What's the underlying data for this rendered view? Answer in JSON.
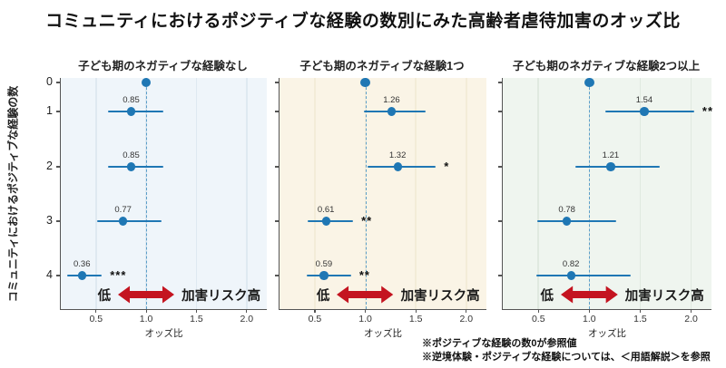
{
  "chart_data": {
    "type": "scatter",
    "variant": "three-panel-forest-plot",
    "title": "コミュニティにおけるポジティブな経験の数別にみた高齢者虐待加害のオッズ比",
    "ylabel": "コミュニティにおけるポジティブな経験の数",
    "xlabel": "オッズ比",
    "x_ticks": [
      "0.5",
      "1.0",
      "1.5",
      "2.0"
    ],
    "x_tick_values": [
      0.5,
      1.0,
      1.5,
      2.0
    ],
    "xlim": [
      0.15,
      2.2
    ],
    "y_ticks": [
      "0",
      "1",
      "2",
      "3",
      "4"
    ],
    "grid": "vertical-only",
    "reference_value": 1.0,
    "point_color": "#1f77b4",
    "reference_line_color": "#5b9ec9",
    "spine_color": "#555555",
    "panels": [
      {
        "title": "子ども期のネガティブな経験なし",
        "bg_color": "#eff5fa",
        "grid_color": "#dfe9f1",
        "points": [
          {
            "y": "0",
            "or": 1.0,
            "reference": true
          },
          {
            "y": "1",
            "or": 0.85,
            "label": "0.85",
            "ci": [
              0.62,
              1.17
            ],
            "sig": ""
          },
          {
            "y": "2",
            "or": 0.85,
            "label": "0.85",
            "ci": [
              0.62,
              1.17
            ],
            "sig": ""
          },
          {
            "y": "3",
            "or": 0.77,
            "label": "0.77",
            "ci": [
              0.51,
              1.15
            ],
            "sig": ""
          },
          {
            "y": "4",
            "or": 0.36,
            "label": "0.36",
            "ci": [
              0.21,
              0.56
            ],
            "sig": "***"
          }
        ]
      },
      {
        "title": "子ども期のネガティブな経験1つ",
        "bg_color": "#faf4e6",
        "grid_color": "#f3ecd8",
        "points": [
          {
            "y": "0",
            "or": 1.0,
            "reference": true
          },
          {
            "y": "1",
            "or": 1.26,
            "label": "1.26",
            "ci": [
              0.99,
              1.6
            ],
            "sig": ""
          },
          {
            "y": "2",
            "or": 1.32,
            "label": "1.32",
            "ci": [
              1.02,
              1.7
            ],
            "sig": "*"
          },
          {
            "y": "3",
            "or": 0.61,
            "label": "0.61",
            "ci": [
              0.43,
              0.88
            ],
            "sig": "**"
          },
          {
            "y": "4",
            "or": 0.59,
            "label": "0.59",
            "ci": [
              0.42,
              0.86
            ],
            "sig": "**"
          }
        ]
      },
      {
        "title": "子ども期のネガティブな経験2つ以上",
        "bg_color": "#eff5ef",
        "grid_color": "#e0e9e0",
        "points": [
          {
            "y": "0",
            "or": 1.0,
            "reference": true
          },
          {
            "y": "1",
            "or": 1.54,
            "label": "1.54",
            "ci": [
              1.16,
              2.03
            ],
            "sig": "**"
          },
          {
            "y": "2",
            "or": 1.21,
            "label": "1.21",
            "ci": [
              0.86,
              1.69
            ],
            "sig": ""
          },
          {
            "y": "3",
            "or": 0.78,
            "label": "0.78",
            "ci": [
              0.49,
              1.26
            ],
            "sig": ""
          },
          {
            "y": "4",
            "or": 0.82,
            "label": "0.82",
            "ci": [
              0.48,
              1.41
            ],
            "sig": ""
          }
        ]
      }
    ],
    "risk_arrow": {
      "left_label": "低",
      "right_label": "加害リスク高",
      "color": "#c41420"
    },
    "notes": [
      "※ポジティブな経験の数0が参照値",
      "※逆境体験・ポジティブな経験については、＜用語解説＞を参照"
    ]
  }
}
